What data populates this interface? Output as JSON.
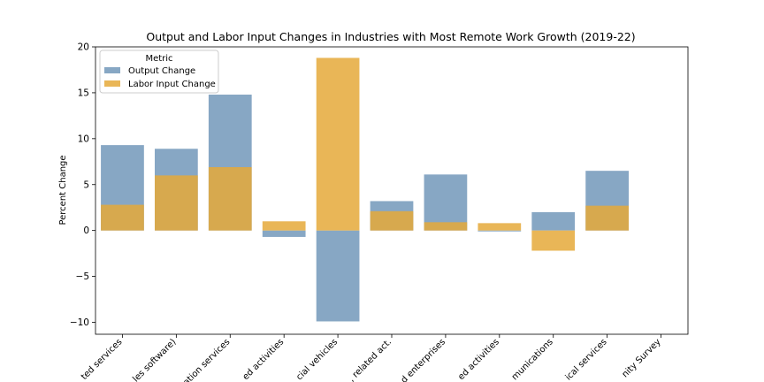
{
  "chart_data": {
    "type": "bar",
    "title": "Output and Labor Input Changes in Industries with Most Remote Work Growth (2019-22)",
    "xlabel": "",
    "ylabel": "Percent Change",
    "ylim": [
      -11.3,
      20
    ],
    "yticks": [
      -10,
      -5,
      0,
      5,
      10,
      15,
      20
    ],
    "ytick_labels": [
      "−10",
      "−5",
      "0",
      "5",
      "10",
      "15",
      "20"
    ],
    "categories": [
      "ted services",
      "les software)",
      "ation services",
      "ed activities",
      "cial vehicles",
      ", related act.",
      "d enterprises",
      "ed activities",
      "munications",
      "ical services",
      "nity Survey"
    ],
    "legend": {
      "title": "Metric",
      "position": "upper-left"
    },
    "series": [
      {
        "name": "Output Change",
        "color": "#5f8ab0",
        "values": [
          9.3,
          8.9,
          14.8,
          -0.7,
          -9.9,
          3.2,
          6.1,
          -0.1,
          2.0,
          6.5,
          null
        ]
      },
      {
        "name": "Labor Input Change",
        "color": "#e5a93a",
        "values": [
          2.8,
          6.0,
          6.9,
          1.0,
          18.8,
          2.1,
          0.9,
          0.8,
          -2.2,
          2.7,
          null
        ]
      }
    ],
    "grid": false
  }
}
